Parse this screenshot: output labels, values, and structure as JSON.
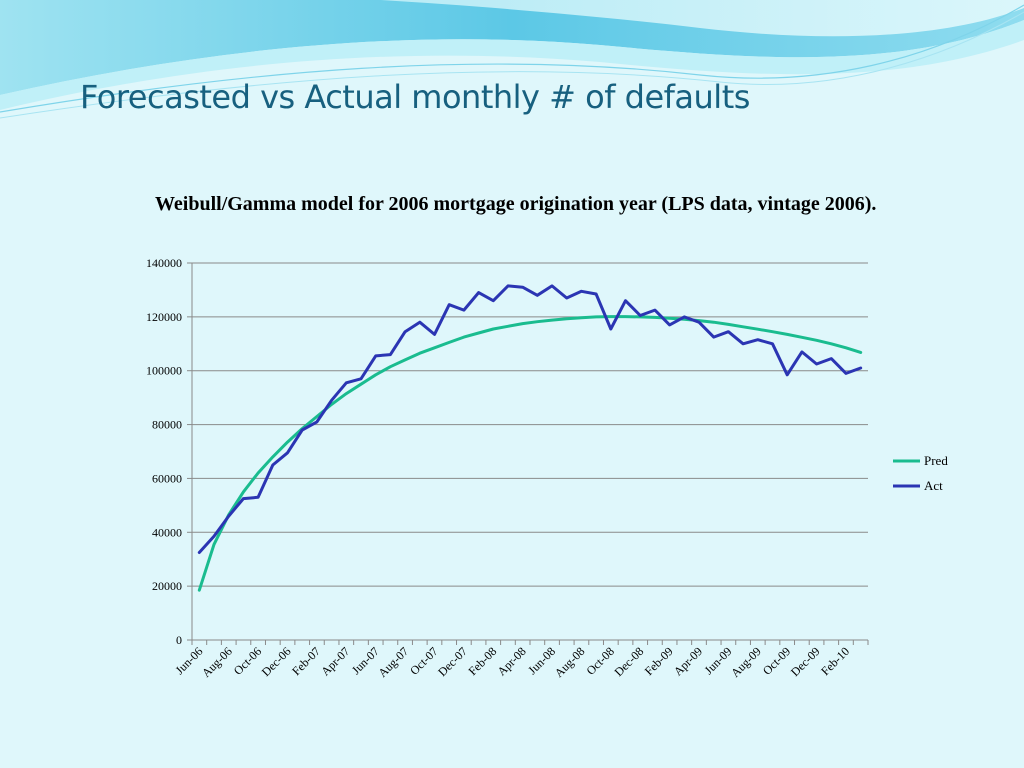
{
  "slide": {
    "title": "Forecasted vs Actual monthly # of defaults"
  },
  "colors": {
    "background": "#dff7fb",
    "title": "#17607f",
    "pred": "#1abc8f",
    "act": "#2b35b3",
    "grid": "#8a8a8a"
  },
  "chart_data": {
    "type": "line",
    "title": "Weibull/Gamma model for 2006 mortgage origination year (LPS data, vintage 2006).",
    "xlabel": "",
    "ylabel": "",
    "ylim": [
      0,
      140000
    ],
    "yticks": [
      0,
      20000,
      40000,
      60000,
      80000,
      100000,
      120000,
      140000
    ],
    "grid": true,
    "legend": "right",
    "x": [
      "Jun-06",
      "Jul-06",
      "Aug-06",
      "Sep-06",
      "Oct-06",
      "Nov-06",
      "Dec-06",
      "Jan-07",
      "Feb-07",
      "Mar-07",
      "Apr-07",
      "May-07",
      "Jun-07",
      "Jul-07",
      "Aug-07",
      "Sep-07",
      "Oct-07",
      "Nov-07",
      "Dec-07",
      "Jan-08",
      "Feb-08",
      "Mar-08",
      "Apr-08",
      "May-08",
      "Jun-08",
      "Jul-08",
      "Aug-08",
      "Sep-08",
      "Oct-08",
      "Nov-08",
      "Dec-08",
      "Jan-09",
      "Feb-09",
      "Mar-09",
      "Apr-09",
      "May-09",
      "Jun-09",
      "Jul-09",
      "Aug-09",
      "Sep-09",
      "Oct-09",
      "Nov-09",
      "Dec-09",
      "Jan-10",
      "Feb-10",
      "Mar-10"
    ],
    "tick_labels": [
      "Jun-06",
      "Aug-06",
      "Oct-06",
      "Dec-06",
      "Feb-07",
      "Apr-07",
      "Jun-07",
      "Aug-07",
      "Oct-07",
      "Dec-07",
      "Feb-08",
      "Apr-08",
      "Jun-08",
      "Aug-08",
      "Oct-08",
      "Dec-08",
      "Feb-09",
      "Apr-09",
      "Jun-09",
      "Aug-09",
      "Oct-09",
      "Dec-09",
      "Feb-10"
    ],
    "series": [
      {
        "name": "Pred",
        "values": [
          18500,
          35500,
          46500,
          55000,
          62000,
          68000,
          73500,
          78500,
          83000,
          87500,
          91500,
          95000,
          98500,
          101500,
          104000,
          106500,
          108500,
          110500,
          112500,
          114000,
          115500,
          116500,
          117500,
          118200,
          118800,
          119300,
          119700,
          120000,
          120100,
          120100,
          120000,
          119800,
          119500,
          119100,
          118600,
          118000,
          117200,
          116300,
          115400,
          114500,
          113500,
          112400,
          111300,
          110000,
          108500,
          106800
        ]
      },
      {
        "name": "Act",
        "values": [
          32500,
          38500,
          46000,
          52500,
          53000,
          65000,
          69500,
          78000,
          81000,
          89000,
          95500,
          97000,
          105500,
          106000,
          114500,
          118000,
          113500,
          124500,
          122500,
          129000,
          126000,
          131500,
          131000,
          128000,
          131500,
          127000,
          129500,
          128500,
          115500,
          126000,
          120500,
          122500,
          117000,
          120000,
          118000,
          112500,
          114500,
          110000,
          111500,
          110000,
          98500,
          107000,
          102500,
          104500,
          99000,
          101000
        ]
      }
    ]
  }
}
